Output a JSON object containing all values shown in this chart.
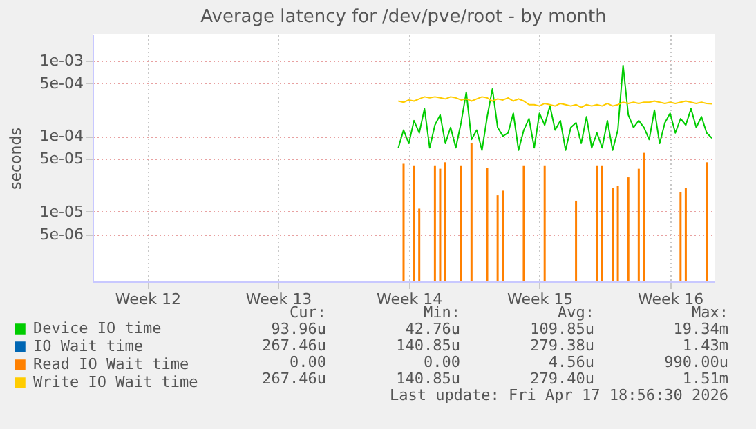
{
  "chart_data": {
    "type": "line",
    "title": "Average latency for /dev/pve/root - by month",
    "ylabel": "seconds",
    "log": "y",
    "grid": true,
    "legend": "bottom left",
    "categories": [
      null,
      null,
      null,
      null,
      null,
      null,
      null,
      null,
      null,
      null,
      "Week 12",
      null,
      null,
      null,
      null,
      null,
      null,
      null,
      null,
      null,
      null,
      null,
      null,
      null,
      null,
      null,
      null,
      null,
      null,
      null,
      null,
      null,
      null,
      null,
      null,
      "Week 13",
      null,
      null,
      null,
      null,
      null,
      null,
      null,
      null,
      null,
      null,
      null,
      null,
      null,
      null,
      null,
      null,
      null,
      null,
      null,
      null,
      null,
      null,
      null,
      null,
      "Week 14",
      null,
      null,
      null,
      null,
      null,
      null,
      null,
      null,
      null,
      null,
      null,
      null,
      null,
      null,
      null,
      null,
      null,
      null,
      null,
      null,
      null,
      null,
      null,
      null,
      "Week 15",
      null,
      null,
      null,
      null,
      null,
      null,
      null,
      null,
      null,
      null,
      null,
      null,
      null,
      null,
      null,
      null,
      null,
      null,
      null,
      null,
      null,
      null,
      null,
      null,
      "Week 16",
      null,
      null,
      null,
      null,
      null,
      null,
      null,
      null
    ],
    "ylim": [
      1.2e-06,
      0.0022
    ],
    "yticks": [
      {
        "value": 5e-06,
        "label": "5e-06"
      },
      {
        "value": 1e-05,
        "label": "1e-05"
      },
      {
        "value": 5e-05,
        "label": "5e-05"
      },
      {
        "value": 0.0001,
        "label": "1e-04"
      },
      {
        "value": 0.0005,
        "label": "5e-04"
      },
      {
        "value": 0.001,
        "label": "1e-03"
      }
    ],
    "series": [
      {
        "name": "Device IO time",
        "color": "#00cc00",
        "values": [
          null,
          null,
          null,
          null,
          null,
          null,
          null,
          null,
          null,
          null,
          null,
          null,
          null,
          null,
          null,
          null,
          null,
          null,
          null,
          null,
          null,
          null,
          null,
          null,
          null,
          null,
          null,
          null,
          null,
          null,
          null,
          null,
          null,
          null,
          null,
          null,
          null,
          null,
          null,
          null,
          null,
          null,
          null,
          null,
          null,
          null,
          null,
          null,
          null,
          null,
          null,
          null,
          null,
          null,
          null,
          null,
          null,
          null,
          7e-05,
          0.00012,
          8e-05,
          0.00016,
          0.00011,
          0.00023,
          7e-05,
          0.00014,
          0.00019,
          8e-05,
          0.00013,
          7e-05,
          0.00015,
          0.00038,
          9e-05,
          0.00012,
          6.5e-05,
          0.00018,
          0.00042,
          0.00013,
          0.0001,
          0.00011,
          0.0002,
          6.5e-05,
          0.00012,
          0.00017,
          7e-05,
          0.0002,
          0.00014,
          0.00025,
          0.00012,
          0.00016,
          6.5e-05,
          0.00013,
          0.00015,
          8e-05,
          0.00018,
          7e-05,
          0.00011,
          7e-05,
          0.00016,
          6.5e-05,
          0.00012,
          0.00086,
          0.00019,
          0.00013,
          0.00016,
          0.00013,
          9e-05,
          0.00022,
          8e-05,
          0.00015,
          0.0002,
          0.00011,
          0.00017,
          0.00014,
          0.00023,
          0.00013,
          0.00018,
          0.00011,
          9.4e-05
        ]
      },
      {
        "name": "IO Wait time",
        "color": "#0066b3",
        "values": [
          null,
          null,
          null,
          null,
          null,
          null,
          null,
          null,
          null,
          null,
          null,
          null,
          null,
          null,
          null,
          null,
          null,
          null,
          null,
          null,
          null,
          null,
          null,
          null,
          null,
          null,
          null,
          null,
          null,
          null,
          null,
          null,
          null,
          null,
          null,
          null,
          null,
          null,
          null,
          null,
          null,
          null,
          null,
          null,
          null,
          null,
          null,
          null,
          null,
          null,
          null,
          null,
          null,
          null,
          null,
          null,
          null,
          null,
          null,
          null,
          null,
          null,
          null,
          null,
          null,
          null,
          null,
          null,
          null,
          null,
          null,
          null,
          null,
          null,
          null,
          null,
          null,
          null,
          null,
          null,
          null,
          null,
          null,
          null,
          null,
          null,
          null,
          null,
          null,
          null,
          null,
          null,
          null,
          null,
          null,
          null,
          null,
          null,
          null,
          null,
          null,
          null,
          null,
          null,
          null,
          null,
          null,
          null,
          null,
          null,
          null,
          null,
          null,
          null,
          null,
          null,
          null,
          null,
          null
        ]
      },
      {
        "name": "Read IO Wait time",
        "color": "#ff8000",
        "type": "bar",
        "values": [
          null,
          null,
          null,
          null,
          null,
          null,
          null,
          null,
          null,
          null,
          null,
          null,
          null,
          null,
          null,
          null,
          null,
          null,
          null,
          null,
          null,
          null,
          null,
          null,
          null,
          null,
          null,
          null,
          null,
          null,
          null,
          null,
          null,
          null,
          null,
          null,
          null,
          null,
          null,
          null,
          null,
          null,
          null,
          null,
          null,
          null,
          null,
          null,
          null,
          null,
          null,
          null,
          null,
          null,
          null,
          null,
          null,
          null,
          null,
          4.3e-05,
          null,
          4.1e-05,
          1.1e-05,
          null,
          null,
          4.1e-05,
          3.7e-05,
          4.5e-05,
          null,
          null,
          4.1e-05,
          null,
          8e-05,
          null,
          null,
          3.8e-05,
          null,
          1.65e-05,
          1.9e-05,
          null,
          null,
          null,
          4.1e-05,
          null,
          null,
          null,
          4.1e-05,
          null,
          null,
          null,
          null,
          null,
          1.4e-05,
          null,
          null,
          null,
          4.1e-05,
          4.1e-05,
          null,
          2.05e-05,
          2.2e-05,
          null,
          2.85e-05,
          null,
          3.7e-05,
          6e-05,
          null,
          null,
          null,
          null,
          null,
          null,
          1.8e-05,
          2.05e-05,
          null,
          null,
          null,
          4.5e-05,
          null
        ]
      },
      {
        "name": "Write IO Wait time",
        "color": "#ffcc00",
        "values": [
          null,
          null,
          null,
          null,
          null,
          null,
          null,
          null,
          null,
          null,
          null,
          null,
          null,
          null,
          null,
          null,
          null,
          null,
          null,
          null,
          null,
          null,
          null,
          null,
          null,
          null,
          null,
          null,
          null,
          null,
          null,
          null,
          null,
          null,
          null,
          null,
          null,
          null,
          null,
          null,
          null,
          null,
          null,
          null,
          null,
          null,
          null,
          null,
          null,
          null,
          null,
          null,
          null,
          null,
          null,
          null,
          null,
          null,
          0.00029,
          0.00028,
          0.0003,
          0.00029,
          0.00031,
          0.00033,
          0.00032,
          0.00033,
          0.00032,
          0.00031,
          0.00033,
          0.00032,
          0.0003,
          0.00031,
          0.00029,
          0.00031,
          0.00033,
          0.00032,
          0.00029,
          0.00031,
          0.0003,
          0.00032,
          0.00029,
          0.00031,
          0.00029,
          0.00026,
          0.00026,
          0.00025,
          0.00027,
          0.00026,
          0.00025,
          0.00027,
          0.00026,
          0.00025,
          0.00026,
          0.00024,
          0.00026,
          0.00025,
          0.00026,
          0.00025,
          0.00027,
          0.00025,
          0.00026,
          0.00028,
          0.00027,
          0.00028,
          0.00027,
          0.00028,
          0.00028,
          0.00029,
          0.00028,
          0.00027,
          0.00028,
          0.00027,
          0.00028,
          0.00029,
          0.00028,
          0.00027,
          0.00028,
          0.00027,
          0.000267
        ]
      }
    ],
    "annotations": [
      "Cur:",
      "Min:",
      "Avg:",
      "Max:",
      "93.96u",
      "42.76u",
      "109.85u",
      "19.34m",
      "267.46u",
      "140.85u",
      "279.38u",
      "1.43m",
      "0.00",
      "0.00",
      "4.56u",
      "990.00u",
      "267.46u",
      "140.85u",
      "279.40u",
      "1.51m",
      "Last update: Fri Apr 17 18:56:30 2026"
    ]
  }
}
